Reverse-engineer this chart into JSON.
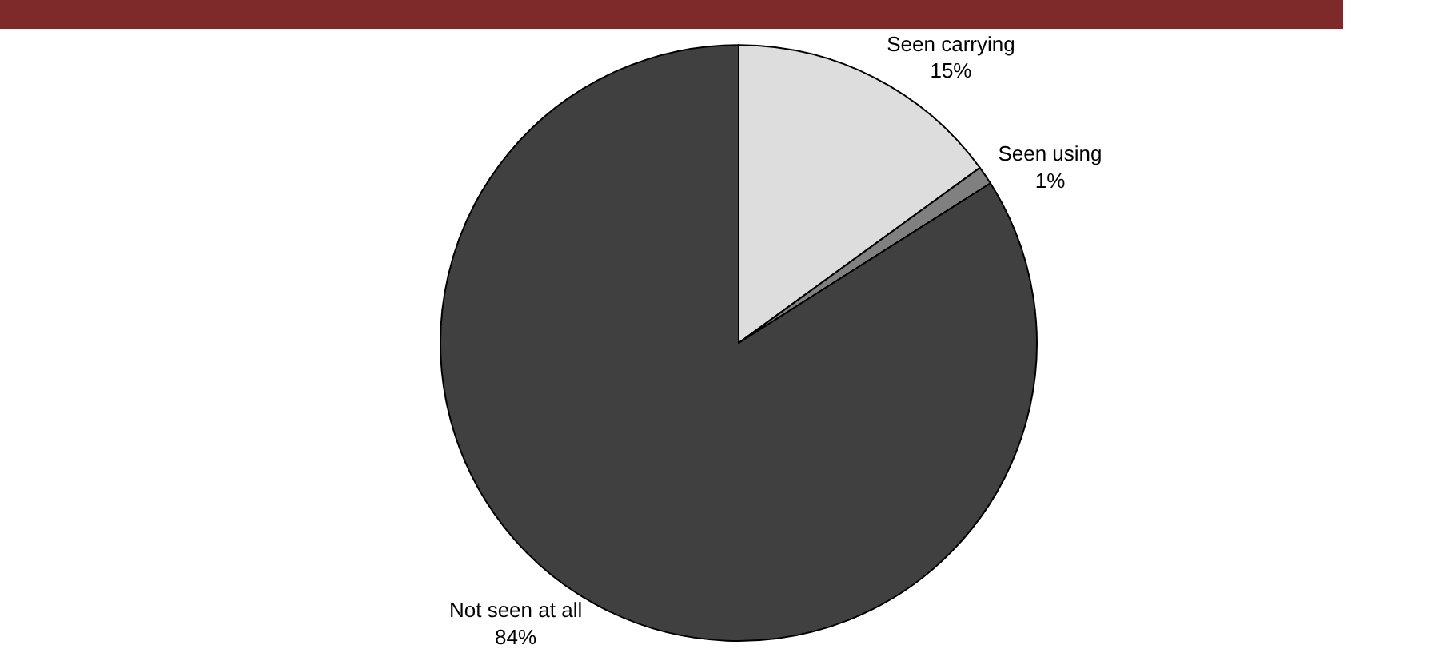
{
  "chart_data": {
    "type": "pie",
    "categories": [
      "Seen carrying",
      "Seen using",
      "Not seen at all"
    ],
    "values": [
      15,
      1,
      84
    ],
    "value_labels": [
      "15%",
      "1%",
      "84%"
    ],
    "colors": [
      "#dddddd",
      "#808080",
      "#404040"
    ]
  }
}
